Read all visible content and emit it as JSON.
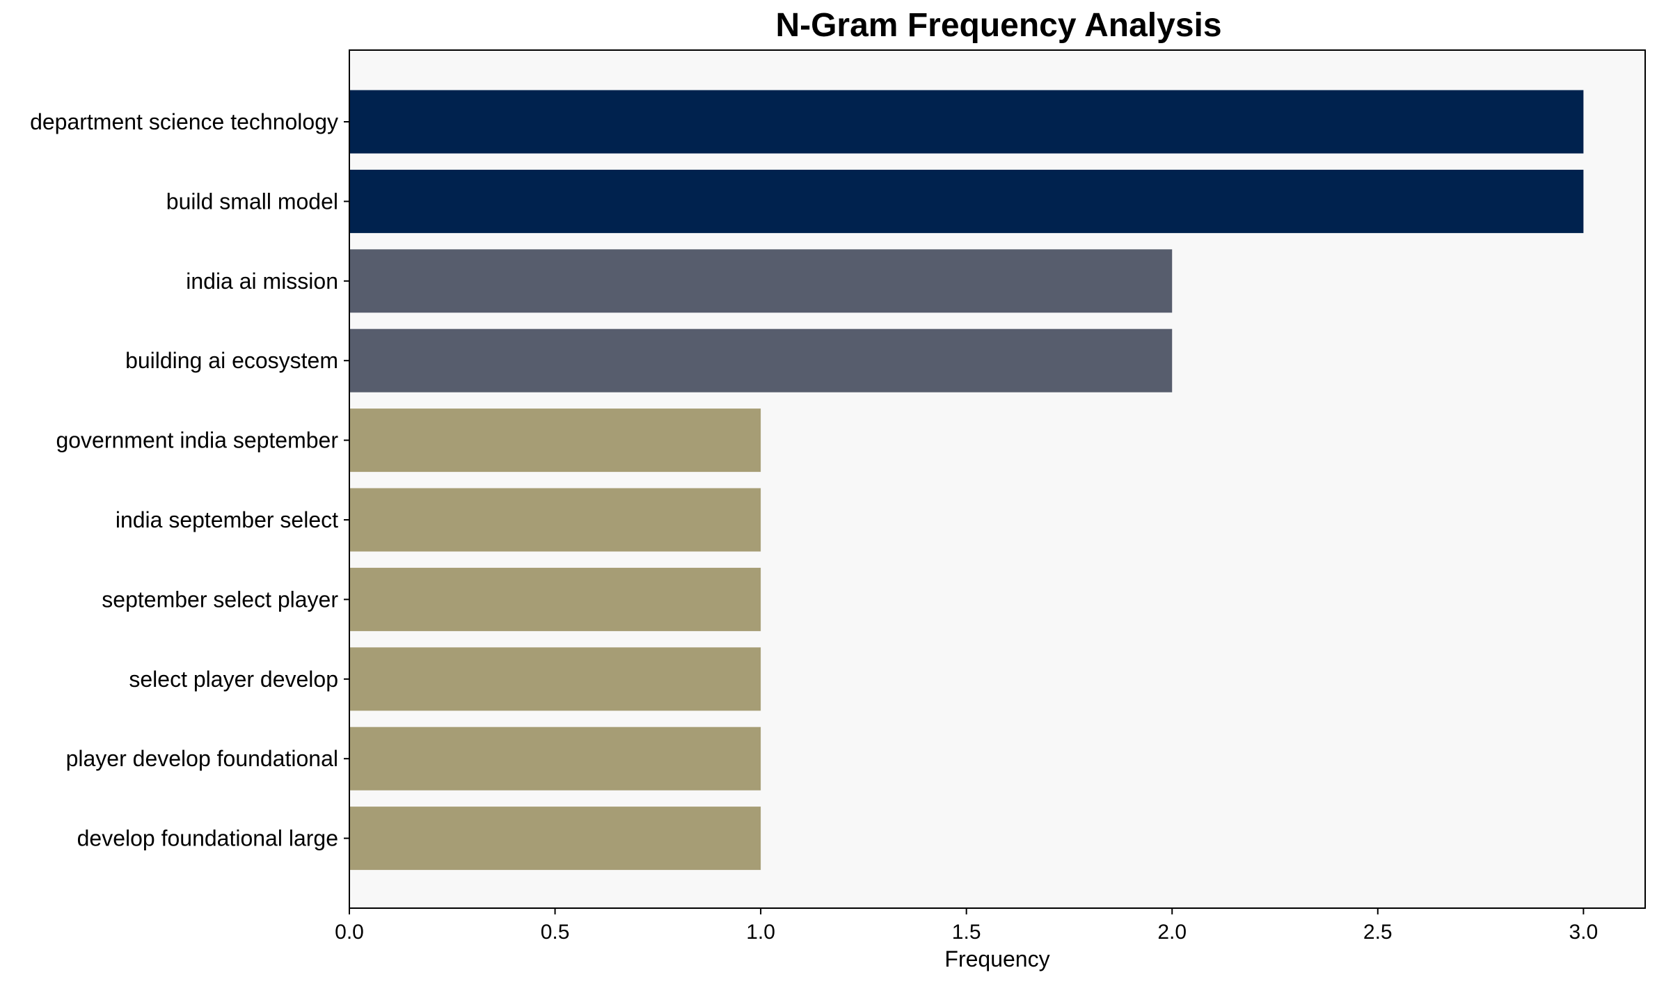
{
  "chart_data": {
    "type": "bar",
    "orientation": "horizontal",
    "title": "N-Gram Frequency Analysis",
    "xlabel": "Frequency",
    "ylabel": "",
    "xlim": [
      0,
      3.15
    ],
    "xticks": [
      "0.0",
      "0.5",
      "1.0",
      "1.5",
      "2.0",
      "2.5",
      "3.0"
    ],
    "categories": [
      "department science technology",
      "build small model",
      "india ai mission",
      "building ai ecosystem",
      "government india september",
      "india september select",
      "september select player",
      "select player develop",
      "player develop foundational",
      "develop foundational large"
    ],
    "values": [
      3,
      3,
      2,
      2,
      1,
      1,
      1,
      1,
      1,
      1
    ],
    "grid": false,
    "legend": "none",
    "colors": {
      "value_3": "#00224e",
      "value_2": "#575d6d",
      "value_1": "#a69d75",
      "plot_background": "#f8f8f8"
    }
  }
}
